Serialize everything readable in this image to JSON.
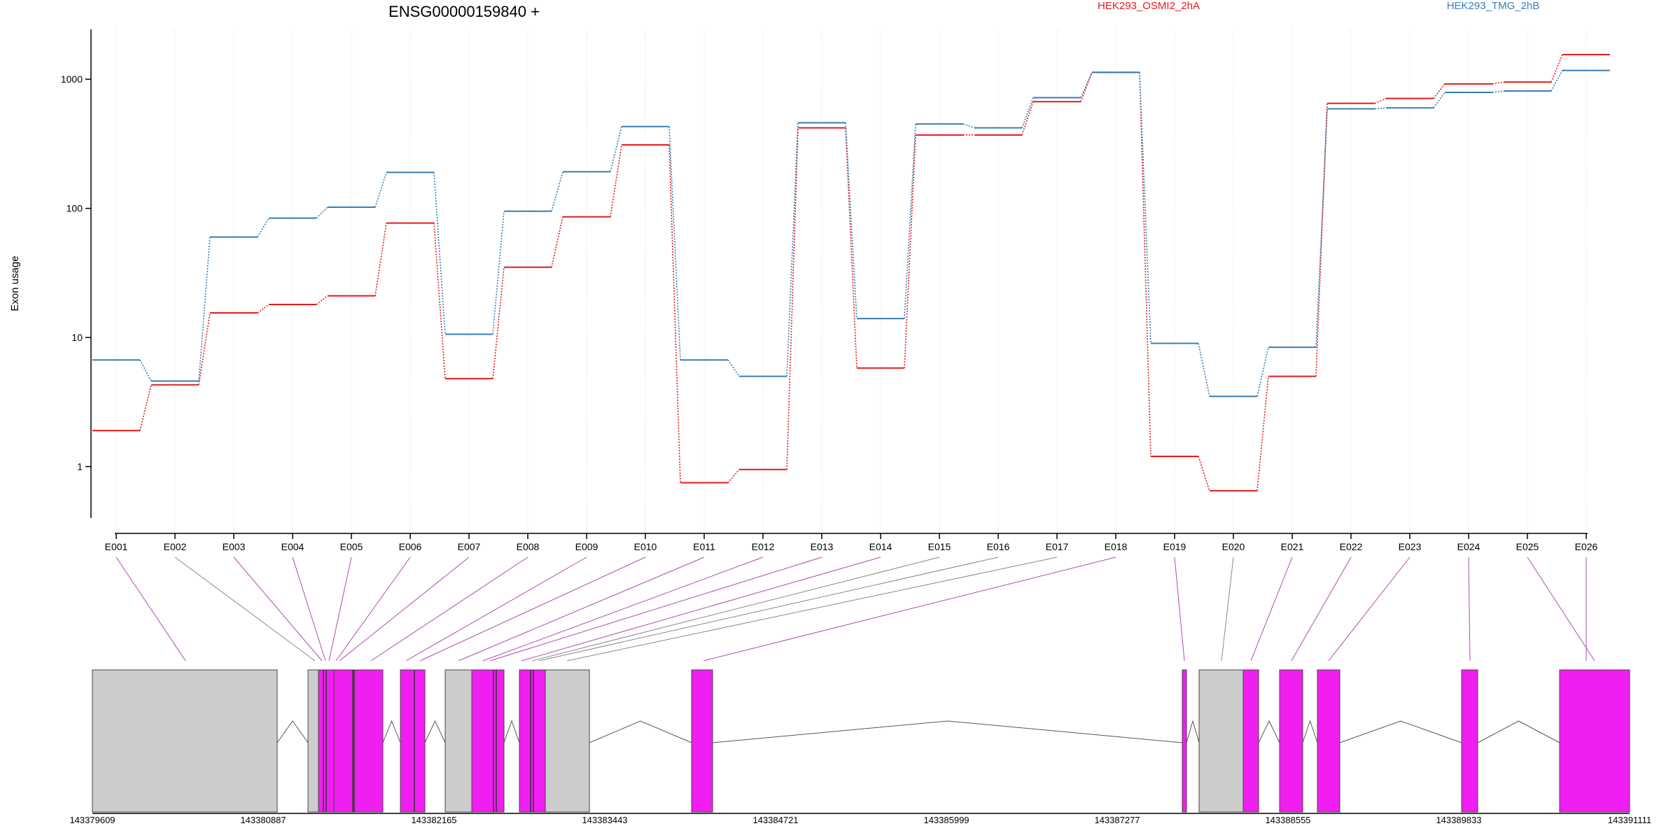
{
  "chart_data": {
    "type": "line",
    "title": "ENSG00000159840 +",
    "ylabel": "Exon usage",
    "yscale": "log",
    "ylim": [
      0.4,
      2200
    ],
    "yticks": [
      1,
      10,
      100,
      1000
    ],
    "ytick_labels": [
      "1",
      "10",
      "100",
      "1000"
    ],
    "categories": [
      "E001",
      "E002",
      "E003",
      "E004",
      "E005",
      "E006",
      "E007",
      "E008",
      "E009",
      "E010",
      "E011",
      "E012",
      "E013",
      "E014",
      "E015",
      "E016",
      "E017",
      "E018",
      "E019",
      "E020",
      "E021",
      "E022",
      "E023",
      "E024",
      "E025",
      "E026"
    ],
    "legend_placement": "top",
    "series": [
      {
        "name": "HEK293_OSMI2_2hA",
        "color": "#e41a1c",
        "values": [
          1.9,
          4.3,
          15.5,
          18,
          21,
          77,
          4.8,
          35,
          86,
          310,
          0.75,
          0.95,
          420,
          5.8,
          370,
          370,
          670,
          1130,
          1.2,
          0.65,
          5,
          650,
          710,
          920,
          950,
          1550
        ]
      },
      {
        "name": "HEK293_TMG_2hB",
        "color": "#377eb8",
        "values": [
          6.7,
          4.6,
          60,
          84,
          102,
          190,
          10.6,
          95,
          192,
          430,
          6.7,
          5,
          460,
          14,
          450,
          420,
          720,
          1130,
          9,
          3.5,
          8.4,
          590,
          600,
          790,
          810,
          1170
        ]
      }
    ],
    "gene_model": {
      "coord_labels": [
        "143379609",
        "143380887",
        "143382165",
        "143383443",
        "143384721",
        "143385999",
        "143387277",
        "143388555",
        "143389833",
        "143391111"
      ]
    }
  },
  "colors": {
    "exon_highlight": "#f01ef0",
    "exon_plain": "#cccccc",
    "grid": "#e8e8f2"
  }
}
